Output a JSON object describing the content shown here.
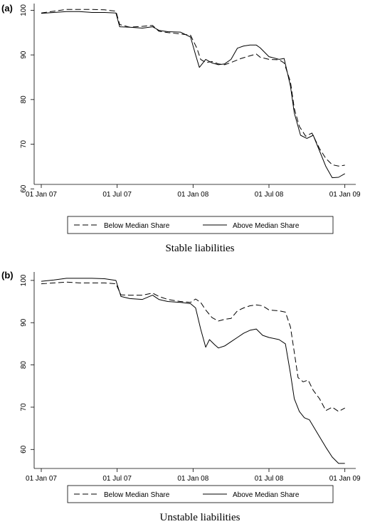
{
  "chart_data": [
    {
      "type": "line",
      "panel_label": "(a)",
      "caption": "Stable liabilities",
      "xlabel": "",
      "ylabel": "",
      "x_ticks": [
        "01 Jan 07",
        "01 Jul 07",
        "01 Jan 08",
        "01 Jul 08",
        "01 Jan 09"
      ],
      "y_ticks": [
        60,
        70,
        80,
        90,
        100
      ],
      "ylim": [
        61,
        101.5
      ],
      "xlim": [
        0,
        24.3
      ],
      "legend": {
        "placement": "bottom",
        "entries": [
          "Below Median Share",
          "Above Median Share"
        ]
      },
      "series": [
        {
          "name": "Below Median Share",
          "style": "dashed",
          "points": [
            [
              0,
              99.4
            ],
            [
              1,
              99.8
            ],
            [
              2,
              100.2
            ],
            [
              3,
              100.2
            ],
            [
              4,
              100.2
            ],
            [
              5,
              100.1
            ],
            [
              5.9,
              99.8
            ],
            [
              6.2,
              96.8
            ],
            [
              7,
              96.2
            ],
            [
              8,
              96.4
            ],
            [
              8.8,
              96.6
            ],
            [
              9.3,
              95.3
            ],
            [
              10,
              95
            ],
            [
              11,
              94.7
            ],
            [
              11.8,
              94.4
            ],
            [
              12.3,
              91.5
            ],
            [
              12.6,
              89
            ],
            [
              13,
              88.3
            ],
            [
              13.5,
              88.5
            ],
            [
              14,
              88
            ],
            [
              14.5,
              87.8
            ],
            [
              15,
              88.3
            ],
            [
              15.8,
              89.2
            ],
            [
              16.5,
              89.8
            ],
            [
              17,
              90.2
            ],
            [
              17.3,
              89.5
            ],
            [
              18,
              89
            ],
            [
              18.8,
              88.9
            ],
            [
              19.2,
              88.2
            ],
            [
              19.7,
              84
            ],
            [
              20,
              78
            ],
            [
              20.4,
              74
            ],
            [
              20.9,
              71.8
            ],
            [
              21.4,
              72.5
            ],
            [
              22,
              69
            ],
            [
              22.5,
              66.8
            ],
            [
              23,
              65.4
            ],
            [
              23.5,
              65.1
            ],
            [
              24,
              65.3
            ]
          ]
        },
        {
          "name": "Above Median Share",
          "style": "solid",
          "points": [
            [
              0,
              99.3
            ],
            [
              1,
              99.5
            ],
            [
              2,
              99.7
            ],
            [
              3,
              99.7
            ],
            [
              4,
              99.5
            ],
            [
              5,
              99.5
            ],
            [
              5.9,
              99.4
            ],
            [
              6.2,
              96.3
            ],
            [
              7,
              96.2
            ],
            [
              8,
              96
            ],
            [
              8.8,
              96.3
            ],
            [
              9.3,
              95.5
            ],
            [
              10,
              95.2
            ],
            [
              11,
              95.1
            ],
            [
              11.8,
              94
            ],
            [
              12.2,
              90
            ],
            [
              12.5,
              87.2
            ],
            [
              13,
              89
            ],
            [
              13.5,
              88.2
            ],
            [
              14,
              87.8
            ],
            [
              14.5,
              88
            ],
            [
              15,
              89
            ],
            [
              15.5,
              91.5
            ],
            [
              16,
              92
            ],
            [
              16.5,
              92.2
            ],
            [
              17,
              92.2
            ],
            [
              17.3,
              91.6
            ],
            [
              18,
              89.6
            ],
            [
              18.8,
              89
            ],
            [
              19.2,
              89.2
            ],
            [
              19.7,
              83
            ],
            [
              20,
              77
            ],
            [
              20.5,
              72
            ],
            [
              21,
              71.3
            ],
            [
              21.5,
              72
            ],
            [
              22,
              68.5
            ],
            [
              22.5,
              65
            ],
            [
              23,
              62.5
            ],
            [
              23.5,
              62.6
            ],
            [
              24,
              63.4
            ]
          ]
        }
      ]
    },
    {
      "type": "line",
      "panel_label": "(b)",
      "caption": "Unstable liabilities",
      "xlabel": "",
      "ylabel": "",
      "x_ticks": [
        "01 Jan 07",
        "01 Jul 07",
        "01 Jan 08",
        "01 Jul 08",
        "01 Jan 09"
      ],
      "y_ticks": [
        60,
        70,
        80,
        90,
        100
      ],
      "ylim": [
        55.5,
        102
      ],
      "xlim": [
        0,
        24.3
      ],
      "legend": {
        "placement": "bottom",
        "entries": [
          "Below Median Share",
          "Above Median Share"
        ]
      },
      "series": [
        {
          "name": "Below Median Share",
          "style": "dashed",
          "points": [
            [
              0,
              99.2
            ],
            [
              1,
              99.4
            ],
            [
              2,
              99.6
            ],
            [
              3,
              99.4
            ],
            [
              4,
              99.4
            ],
            [
              5,
              99.4
            ],
            [
              5.9,
              99.2
            ],
            [
              6.3,
              96.6
            ],
            [
              7,
              96.5
            ],
            [
              8,
              96.5
            ],
            [
              8.8,
              97
            ],
            [
              9.3,
              96.2
            ],
            [
              10,
              95.5
            ],
            [
              11,
              95
            ],
            [
              11.8,
              94.8
            ],
            [
              12.2,
              95.6
            ],
            [
              12.6,
              94.8
            ],
            [
              13,
              93
            ],
            [
              13.5,
              91.2
            ],
            [
              14,
              90.4
            ],
            [
              14.5,
              90.8
            ],
            [
              15,
              91
            ],
            [
              15.5,
              92.8
            ],
            [
              16,
              93.5
            ],
            [
              16.5,
              94
            ],
            [
              17,
              94.2
            ],
            [
              17.5,
              94
            ],
            [
              18,
              93
            ],
            [
              18.8,
              92.8
            ],
            [
              19.3,
              92.5
            ],
            [
              19.7,
              89
            ],
            [
              20,
              83
            ],
            [
              20.3,
              77
            ],
            [
              20.7,
              76
            ],
            [
              21.1,
              76.4
            ],
            [
              21.5,
              74
            ],
            [
              22,
              72
            ],
            [
              22.5,
              69.2
            ],
            [
              23,
              70
            ],
            [
              23.5,
              69
            ],
            [
              24,
              69.8
            ]
          ]
        },
        {
          "name": "Above Median Share",
          "style": "solid",
          "points": [
            [
              0,
              99.8
            ],
            [
              1,
              100.1
            ],
            [
              2,
              100.5
            ],
            [
              3,
              100.5
            ],
            [
              4,
              100.5
            ],
            [
              5,
              100.4
            ],
            [
              5.9,
              100
            ],
            [
              6.3,
              96.2
            ],
            [
              7,
              95.7
            ],
            [
              8,
              95.5
            ],
            [
              8.8,
              96.5
            ],
            [
              9.3,
              95.5
            ],
            [
              10,
              95
            ],
            [
              11,
              94.8
            ],
            [
              11.8,
              94.5
            ],
            [
              12.2,
              93.5
            ],
            [
              12.6,
              88.5
            ],
            [
              13,
              84.2
            ],
            [
              13.3,
              86
            ],
            [
              13.7,
              84.8
            ],
            [
              14,
              84
            ],
            [
              14.5,
              84.5
            ],
            [
              15,
              85.5
            ],
            [
              15.5,
              86.5
            ],
            [
              16,
              87.5
            ],
            [
              16.5,
              88.2
            ],
            [
              17,
              88.5
            ],
            [
              17.5,
              87
            ],
            [
              18,
              86.5
            ],
            [
              18.8,
              86
            ],
            [
              19.3,
              85
            ],
            [
              19.7,
              78
            ],
            [
              20,
              72
            ],
            [
              20.4,
              69
            ],
            [
              20.8,
              67.5
            ],
            [
              21.2,
              67
            ],
            [
              21.6,
              65
            ],
            [
              22,
              63
            ],
            [
              22.5,
              60.5
            ],
            [
              23,
              58.2
            ],
            [
              23.5,
              56.7
            ],
            [
              24,
              56.7
            ]
          ]
        }
      ]
    }
  ]
}
